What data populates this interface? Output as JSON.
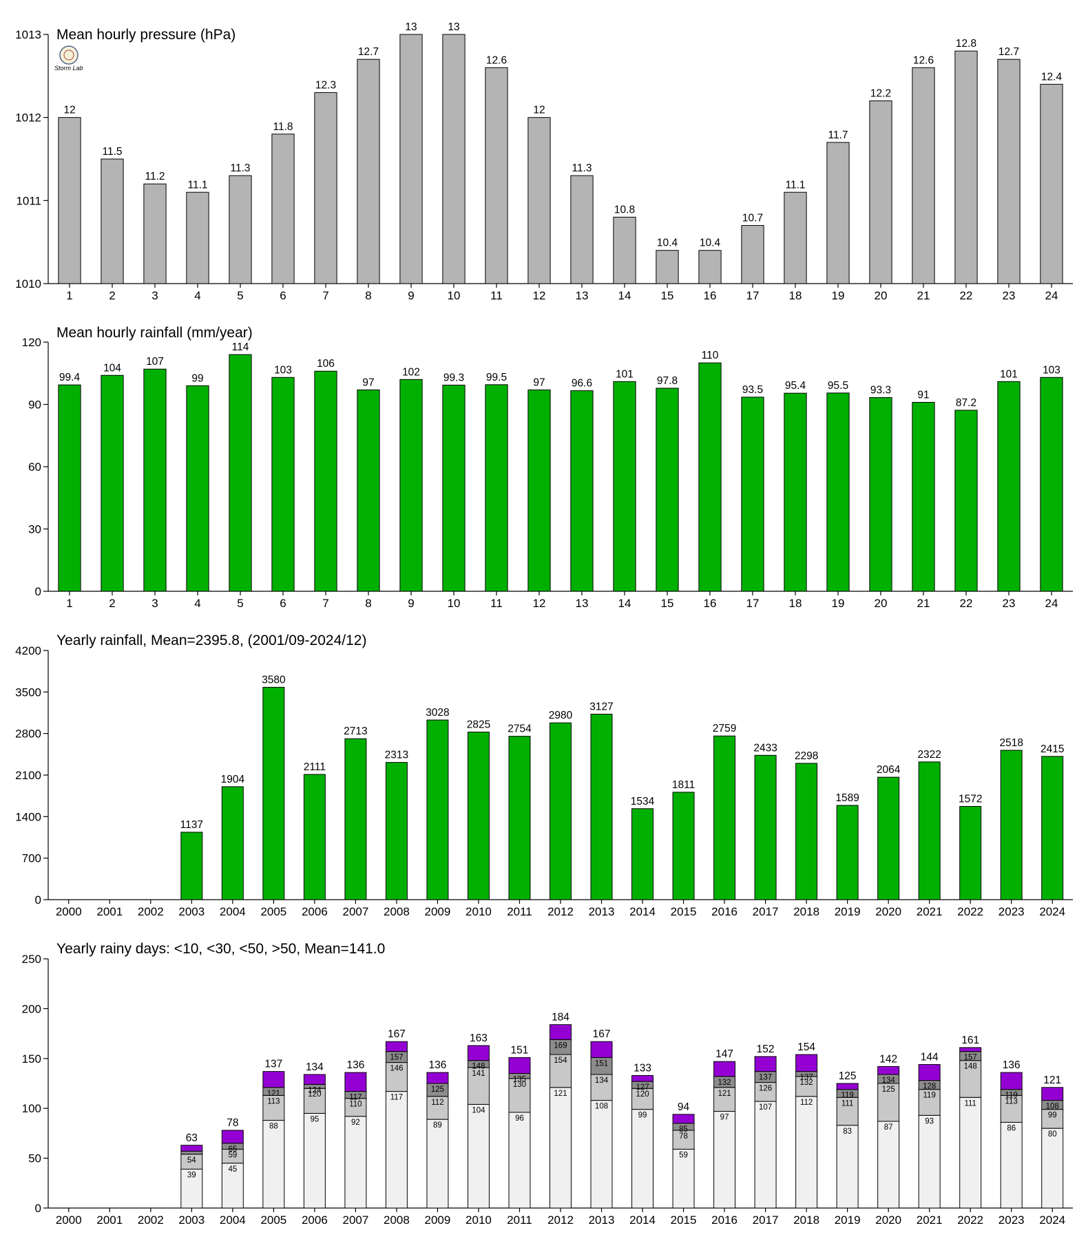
{
  "colors": {
    "pressure_bar": "#b4b4b4",
    "rain_bar": "#00b000",
    "days_lt10": "#f0f0f0",
    "days_lt30": "#c8c8c8",
    "days_lt50": "#8c8c8c",
    "days_gt50": "#9400d3"
  },
  "logo": {
    "text": "Storm Lab",
    "icon": "lab-seal-icon"
  },
  "chart_data": [
    {
      "type": "bar",
      "title": "Mean hourly pressure (hPa)",
      "categories": [
        "1",
        "2",
        "3",
        "4",
        "5",
        "6",
        "7",
        "8",
        "9",
        "10",
        "11",
        "12",
        "13",
        "14",
        "15",
        "16",
        "17",
        "18",
        "19",
        "20",
        "21",
        "22",
        "23",
        "24"
      ],
      "values": [
        1012.0,
        1011.5,
        1011.2,
        1011.1,
        1011.3,
        1011.8,
        1012.3,
        1012.7,
        1013.0,
        1013.0,
        1012.6,
        1012.0,
        1011.3,
        1010.8,
        1010.4,
        1010.4,
        1010.7,
        1011.1,
        1011.7,
        1012.2,
        1012.6,
        1012.8,
        1012.7,
        1012.4
      ],
      "value_labels": [
        "12",
        "11.5",
        "11.2",
        "11.1",
        "11.3",
        "11.8",
        "12.3",
        "12.7",
        "13",
        "13",
        "12.6",
        "12",
        "11.3",
        "10.8",
        "10.4",
        "10.4",
        "10.7",
        "11.1",
        "11.7",
        "12.2",
        "12.6",
        "12.8",
        "12.7",
        "12.4"
      ],
      "ylim": [
        1010,
        1013
      ],
      "yticks": [
        "1010",
        "1011",
        "1012",
        "1013"
      ],
      "grid": false
    },
    {
      "type": "bar",
      "title": "Mean hourly rainfall (mm/year)",
      "categories": [
        "1",
        "2",
        "3",
        "4",
        "5",
        "6",
        "7",
        "8",
        "9",
        "10",
        "11",
        "12",
        "13",
        "14",
        "15",
        "16",
        "17",
        "18",
        "19",
        "20",
        "21",
        "22",
        "23",
        "24"
      ],
      "values": [
        99.4,
        104,
        107,
        99,
        114,
        103,
        106,
        97,
        102,
        99.3,
        99.5,
        97,
        96.6,
        101,
        97.8,
        110,
        93.5,
        95.4,
        95.5,
        93.3,
        91,
        87.2,
        101,
        103
      ],
      "value_labels": [
        "99.4",
        "104",
        "107",
        "99",
        "114",
        "103",
        "106",
        "97",
        "102",
        "99.3",
        "99.5",
        "97",
        "96.6",
        "101",
        "97.8",
        "110",
        "93.5",
        "95.4",
        "95.5",
        "93.3",
        "91",
        "87.2",
        "101",
        "103"
      ],
      "ylim": [
        0,
        120
      ],
      "yticks": [
        "0",
        "30",
        "60",
        "90",
        "120"
      ],
      "grid": false
    },
    {
      "type": "bar",
      "title": "Yearly rainfall, Mean=2395.8, (2001/09-2024/12)",
      "categories": [
        "2000",
        "2001",
        "2002",
        "2003",
        "2004",
        "2005",
        "2006",
        "2007",
        "2008",
        "2009",
        "2010",
        "2011",
        "2012",
        "2013",
        "2014",
        "2015",
        "2016",
        "2017",
        "2018",
        "2019",
        "2020",
        "2021",
        "2022",
        "2023",
        "2024"
      ],
      "values": [
        null,
        null,
        null,
        1137,
        1904,
        3580,
        2111,
        2713,
        2313,
        3028,
        2825,
        2754,
        2980,
        3127,
        1534,
        1811,
        2759,
        2433,
        2298,
        1589,
        2064,
        2322,
        1572,
        2518,
        2415
      ],
      "value_labels": [
        "",
        "",
        "",
        "1137",
        "1904",
        "3580",
        "2111",
        "2713",
        "2313",
        "3028",
        "2825",
        "2754",
        "2980",
        "3127",
        "1534",
        "1811",
        "2759",
        "2433",
        "2298",
        "1589",
        "2064",
        "2322",
        "1572",
        "2518",
        "2415"
      ],
      "ylim": [
        0,
        4200
      ],
      "yticks": [
        "0",
        "700",
        "1400",
        "2100",
        "2800",
        "3500",
        "4200"
      ],
      "grid": false
    },
    {
      "type": "bar",
      "title": "Yearly rainy days: <10, <30, <50, >50, Mean=141.0",
      "categories": [
        "2000",
        "2001",
        "2002",
        "2003",
        "2004",
        "2005",
        "2006",
        "2007",
        "2008",
        "2009",
        "2010",
        "2011",
        "2012",
        "2013",
        "2014",
        "2015",
        "2016",
        "2017",
        "2018",
        "2019",
        "2020",
        "2021",
        "2022",
        "2023",
        "2024"
      ],
      "series": [
        {
          "values": [
            null,
            null,
            null,
            39,
            45,
            88,
            95,
            92,
            117,
            89,
            104,
            96,
            121,
            108,
            99,
            59,
            97,
            107,
            112,
            83,
            87,
            93,
            111,
            86,
            80
          ],
          "labels": [
            "",
            "",
            "",
            "39",
            "45",
            "88",
            "95",
            "92",
            "117",
            "89",
            "104",
            "96",
            "121",
            "108",
            "99",
            "59",
            "97",
            "107",
            "112",
            "83",
            "87",
            "93",
            "111",
            "86",
            "80"
          ]
        },
        {
          "values": [
            null,
            null,
            null,
            54,
            59,
            113,
            120,
            110,
            146,
            112,
            141,
            130,
            154,
            134,
            120,
            78,
            121,
            126,
            132,
            111,
            125,
            119,
            148,
            113,
            99
          ],
          "labels": [
            "",
            "",
            "",
            "54",
            "59",
            "113",
            "120",
            "110",
            "146",
            "112",
            "141",
            "130",
            "154",
            "134",
            "120",
            "78",
            "121",
            "126",
            "132",
            "111",
            "125",
            "119",
            "148",
            "113",
            "99"
          ]
        },
        {
          "values": [
            null,
            null,
            null,
            57,
            65,
            121,
            124,
            117,
            157,
            125,
            148,
            135,
            169,
            151,
            127,
            85,
            132,
            137,
            137,
            119,
            134,
            128,
            157,
            119,
            108
          ],
          "labels": [
            "",
            "",
            "",
            "",
            "65",
            "121",
            "124",
            "117",
            "157",
            "125",
            "148",
            "135",
            "169",
            "151",
            "127",
            "85",
            "132",
            "137",
            "137",
            "119",
            "134",
            "128",
            "157",
            "119",
            "108"
          ]
        },
        {
          "values": [
            null,
            null,
            null,
            63,
            78,
            137,
            134,
            136,
            167,
            136,
            163,
            151,
            184,
            167,
            133,
            94,
            147,
            152,
            154,
            125,
            142,
            144,
            161,
            136,
            121
          ],
          "labels": [
            "",
            "",
            "",
            "63",
            "78",
            "137",
            "134",
            "136",
            "167",
            "136",
            "163",
            "151",
            "184",
            "167",
            "133",
            "94",
            "147",
            "152",
            "154",
            "125",
            "142",
            "144",
            "161",
            "136",
            "121"
          ]
        }
      ],
      "ylim": [
        0,
        250
      ],
      "yticks": [
        "0",
        "50",
        "100",
        "150",
        "200",
        "250"
      ],
      "grid": false
    }
  ]
}
